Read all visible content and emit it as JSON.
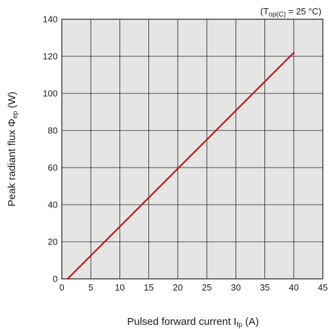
{
  "chart_data": {
    "type": "line",
    "condition": {
      "prefix": "(T",
      "subscript": "op(C)",
      "suffix": " = 25 °C)"
    },
    "xlabel": {
      "main": "Pulsed forward current I",
      "subscript": "fp",
      "suffix": " (A)"
    },
    "ylabel": {
      "main": "Peak radiant flux Φ",
      "subscript": "ep",
      "suffix": " (W)"
    },
    "xlim": [
      0,
      45
    ],
    "ylim": [
      0,
      140
    ],
    "xticks": [
      0,
      5,
      10,
      15,
      20,
      25,
      30,
      35,
      40,
      45
    ],
    "yticks": [
      0,
      20,
      40,
      60,
      80,
      100,
      120,
      140
    ],
    "grid": true,
    "line_color": "#b8141c",
    "plot_background": "#e5e5e5",
    "series": [
      {
        "x": [
          1,
          40
        ],
        "y": [
          0,
          122
        ]
      }
    ]
  }
}
